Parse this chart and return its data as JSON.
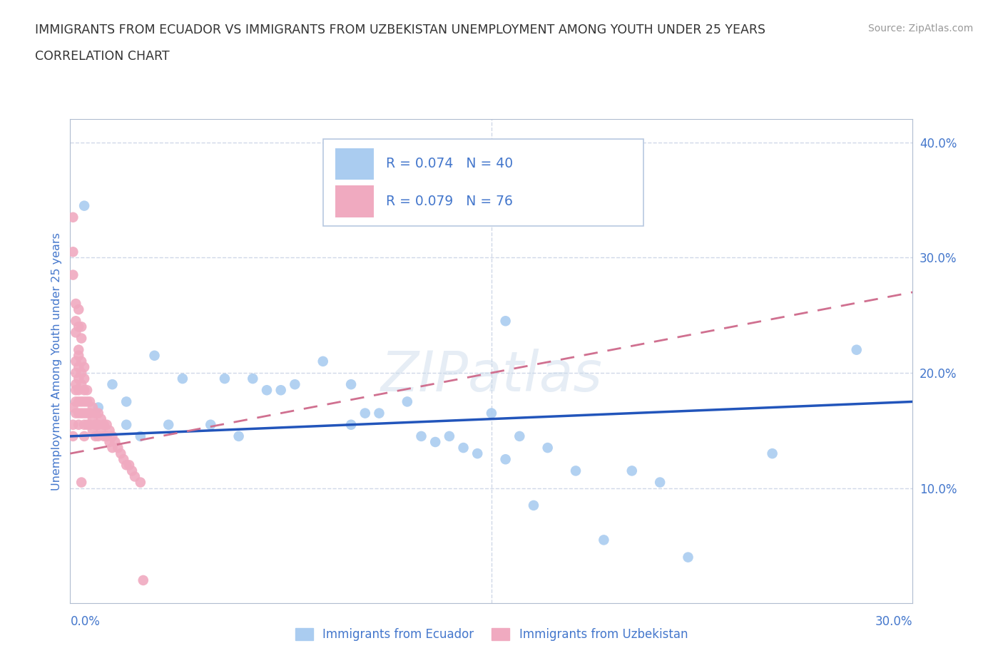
{
  "title_line1": "IMMIGRANTS FROM ECUADOR VS IMMIGRANTS FROM UZBEKISTAN UNEMPLOYMENT AMONG YOUTH UNDER 25 YEARS",
  "title_line2": "CORRELATION CHART",
  "source_text": "Source: ZipAtlas.com",
  "ylabel": "Unemployment Among Youth under 25 years",
  "xlim": [
    0.0,
    0.3
  ],
  "ylim": [
    0.0,
    0.42
  ],
  "y_ticks_right": [
    0.1,
    0.2,
    0.3,
    0.4
  ],
  "y_tick_labels_right": [
    "10.0%",
    "20.0%",
    "30.0%",
    "40.0%"
  ],
  "watermark": "ZIPatlas",
  "legend_ecuador_R": "R = 0.074",
  "legend_ecuador_N": "N = 40",
  "legend_uzbekistan_R": "R = 0.079",
  "legend_uzbekistan_N": "N = 76",
  "legend_label_ecuador": "Immigrants from Ecuador",
  "legend_label_uzbekistan": "Immigrants from Uzbekistan",
  "color_ecuador": "#aaccf0",
  "color_uzbekistan": "#f0aac0",
  "color_trend_ecuador": "#2255bb",
  "color_trend_uzbekistan": "#d07090",
  "color_text": "#333333",
  "color_axis": "#4477cc",
  "ecuador_x": [
    0.005,
    0.01,
    0.015,
    0.02,
    0.02,
    0.025,
    0.03,
    0.035,
    0.04,
    0.05,
    0.055,
    0.06,
    0.065,
    0.07,
    0.075,
    0.08,
    0.09,
    0.1,
    0.1,
    0.105,
    0.11,
    0.12,
    0.125,
    0.13,
    0.135,
    0.14,
    0.15,
    0.155,
    0.16,
    0.17,
    0.18,
    0.19,
    0.2,
    0.21,
    0.22,
    0.25,
    0.165,
    0.145,
    0.28,
    0.155
  ],
  "ecuador_y": [
    0.345,
    0.17,
    0.19,
    0.175,
    0.155,
    0.145,
    0.215,
    0.155,
    0.195,
    0.155,
    0.195,
    0.145,
    0.195,
    0.185,
    0.185,
    0.19,
    0.21,
    0.155,
    0.19,
    0.165,
    0.165,
    0.175,
    0.145,
    0.14,
    0.145,
    0.135,
    0.165,
    0.125,
    0.145,
    0.135,
    0.115,
    0.055,
    0.115,
    0.105,
    0.04,
    0.13,
    0.085,
    0.13,
    0.22,
    0.245
  ],
  "uzbekistan_x": [
    0.001,
    0.001,
    0.001,
    0.002,
    0.002,
    0.002,
    0.002,
    0.002,
    0.002,
    0.003,
    0.003,
    0.003,
    0.003,
    0.003,
    0.003,
    0.003,
    0.003,
    0.004,
    0.004,
    0.004,
    0.004,
    0.004,
    0.005,
    0.005,
    0.005,
    0.005,
    0.005,
    0.005,
    0.005,
    0.006,
    0.006,
    0.006,
    0.006,
    0.007,
    0.007,
    0.007,
    0.008,
    0.008,
    0.008,
    0.009,
    0.009,
    0.009,
    0.01,
    0.01,
    0.01,
    0.011,
    0.011,
    0.012,
    0.012,
    0.013,
    0.013,
    0.014,
    0.014,
    0.015,
    0.015,
    0.016,
    0.017,
    0.018,
    0.019,
    0.02,
    0.021,
    0.022,
    0.023,
    0.001,
    0.001,
    0.001,
    0.002,
    0.002,
    0.002,
    0.003,
    0.003,
    0.004,
    0.004,
    0.004,
    0.025,
    0.026
  ],
  "uzbekistan_y": [
    0.17,
    0.155,
    0.145,
    0.21,
    0.2,
    0.19,
    0.185,
    0.175,
    0.165,
    0.22,
    0.215,
    0.205,
    0.195,
    0.185,
    0.175,
    0.165,
    0.155,
    0.21,
    0.2,
    0.19,
    0.175,
    0.165,
    0.205,
    0.195,
    0.185,
    0.175,
    0.165,
    0.155,
    0.145,
    0.185,
    0.175,
    0.165,
    0.155,
    0.175,
    0.165,
    0.155,
    0.17,
    0.16,
    0.15,
    0.165,
    0.155,
    0.145,
    0.165,
    0.155,
    0.145,
    0.16,
    0.15,
    0.155,
    0.145,
    0.155,
    0.145,
    0.15,
    0.14,
    0.145,
    0.135,
    0.14,
    0.135,
    0.13,
    0.125,
    0.12,
    0.12,
    0.115,
    0.11,
    0.335,
    0.305,
    0.285,
    0.26,
    0.245,
    0.235,
    0.255,
    0.24,
    0.24,
    0.23,
    0.105,
    0.105,
    0.02
  ],
  "grid_color": "#d0d8e8",
  "background_color": "#ffffff",
  "trend_ecuador_x0": 0.0,
  "trend_ecuador_x1": 0.3,
  "trend_ecuador_y0": 0.145,
  "trend_ecuador_y1": 0.175,
  "trend_uzbekistan_x0": 0.0,
  "trend_uzbekistan_x1": 0.3,
  "trend_uzbekistan_y0": 0.13,
  "trend_uzbekistan_y1": 0.27
}
